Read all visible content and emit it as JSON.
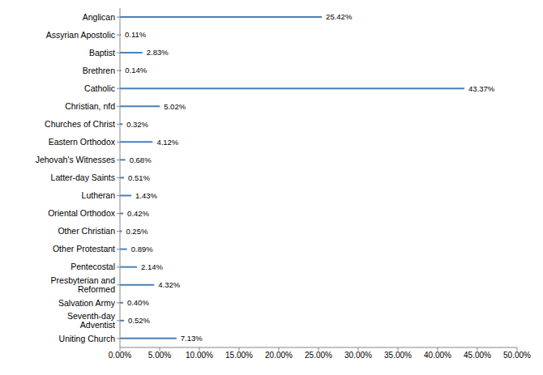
{
  "chart_data": {
    "type": "bar",
    "orientation": "horizontal",
    "categories": [
      "Anglican",
      "Assyrian Apostolic",
      "Baptist",
      "Brethren",
      "Catholic",
      "Christian, nfd",
      "Churches of Christ",
      "Eastern Orthodox",
      "Jehovah's Witnesses",
      "Latter-day Saints",
      "Lutheran",
      "Oriental Orthodox",
      "Other Christian",
      "Other Protestant",
      "Pentecostal",
      "Presbyterian and Reformed",
      "Salvation Army",
      "Seventh-day Adventist",
      "Uniting Church"
    ],
    "values": [
      25.42,
      0.11,
      2.83,
      0.14,
      43.37,
      5.02,
      0.32,
      4.12,
      0.68,
      0.51,
      1.43,
      0.42,
      0.25,
      0.89,
      2.14,
      4.32,
      0.4,
      0.52,
      7.13
    ],
    "value_labels": [
      "25.42%",
      "0.11%",
      "2.83%",
      "0.14%",
      "43.37%",
      "5.02%",
      "0.32%",
      "4.12%",
      "0.68%",
      "0.51%",
      "1.43%",
      "0.42%",
      "0.25%",
      "0.89%",
      "2.14%",
      "4.32%",
      "0.40%",
      "0.52%",
      "7.13%"
    ],
    "color": "#4a7ebb",
    "xlim": [
      0,
      50
    ],
    "xticks": [
      {
        "value": 0,
        "label": "0.00%"
      },
      {
        "value": 5,
        "label": "5.00%"
      },
      {
        "value": 10,
        "label": "10.00%"
      },
      {
        "value": 15,
        "label": "15.00%"
      },
      {
        "value": 20,
        "label": "20.00%"
      },
      {
        "value": 25,
        "label": "25.00%"
      },
      {
        "value": 30,
        "label": "30.00%"
      },
      {
        "value": 35,
        "label": "35.00%"
      },
      {
        "value": 40,
        "label": "40.00%"
      },
      {
        "value": 45,
        "label": "45.00%"
      },
      {
        "value": 50,
        "label": "50.00%"
      }
    ],
    "grid": false,
    "data_labels": true
  }
}
